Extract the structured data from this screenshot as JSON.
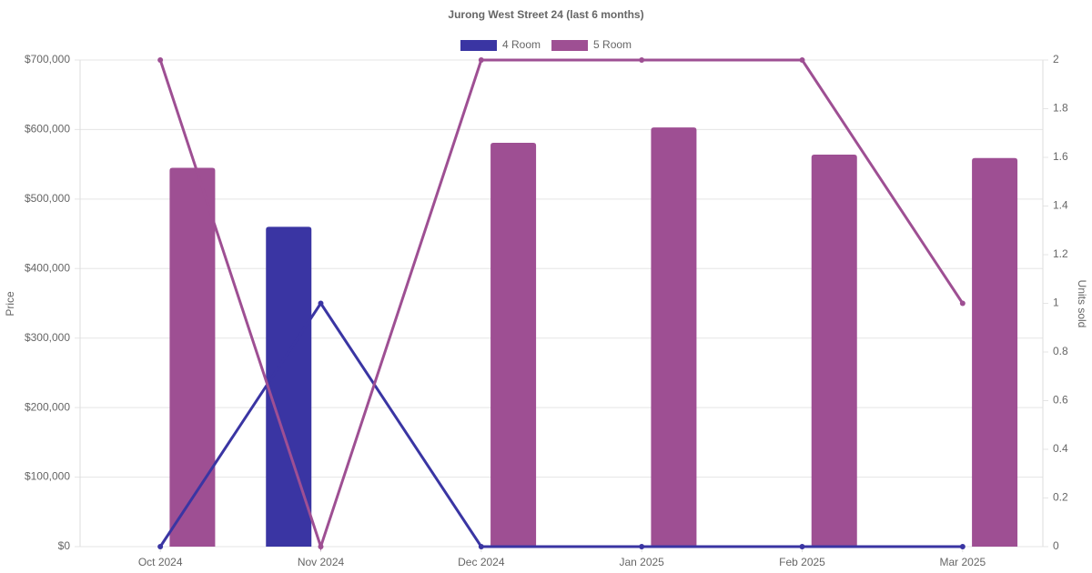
{
  "chart_data": {
    "type": "bar-line",
    "title": "Jurong West Street 24 (last 6 months)",
    "y_label": "Price",
    "y2_label": "Units sold",
    "categories": [
      "Oct 2024",
      "Nov 2024",
      "Dec 2024",
      "Jan 2025",
      "Feb 2025",
      "Mar 2025"
    ],
    "series": [
      {
        "name": "4 Room",
        "color": "#3a35a3",
        "values": [
          null,
          460000,
          null,
          null,
          null,
          null
        ],
        "line_values": [
          0,
          1,
          0,
          0,
          0,
          0
        ]
      },
      {
        "name": "5 Room",
        "color": "#9e4f93",
        "values": [
          545000,
          null,
          581000,
          603000,
          564000,
          559000
        ],
        "line_values": [
          2,
          0,
          2,
          2,
          2,
          1
        ]
      }
    ],
    "ylim": [
      0,
      700000
    ],
    "yticks": [
      {
        "value": 0,
        "label": "$0"
      },
      {
        "value": 100000,
        "label": "$100,000"
      },
      {
        "value": 200000,
        "label": "$200,000"
      },
      {
        "value": 300000,
        "label": "$300,000"
      },
      {
        "value": 400000,
        "label": "$400,000"
      },
      {
        "value": 500000,
        "label": "$500,000"
      },
      {
        "value": 600000,
        "label": "$600,000"
      },
      {
        "value": 700000,
        "label": "$700,000"
      }
    ],
    "y2lim": [
      0,
      2
    ],
    "y2ticks": [
      0,
      0.2,
      0.4,
      0.6,
      0.8,
      1,
      1.2,
      1.4,
      1.6,
      1.8,
      2
    ],
    "grid": true,
    "legend": "top"
  }
}
